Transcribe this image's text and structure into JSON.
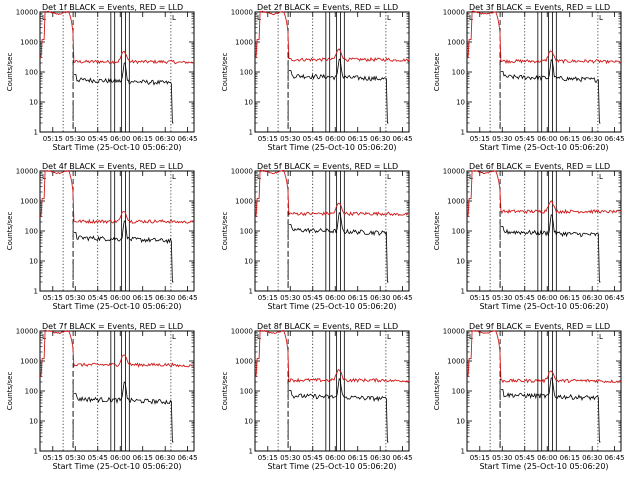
{
  "chart_data": {
    "type": "line",
    "layout": "3x3 grid of panels",
    "y_scale": "log",
    "ylim": [
      1,
      10000
    ],
    "y_tick_labels": [
      "1",
      "10",
      "100",
      "1000",
      "10000"
    ],
    "x_tick_labels": [
      "05:15",
      "05:30",
      "05:45",
      "06:00",
      "06:15",
      "06:30",
      "06:45"
    ],
    "xlabel": "Start Time (25-Oct-10 05:06:20)",
    "ylabel": "Counts/sec",
    "colors": {
      "events": "#000000",
      "lld": "#d01818"
    },
    "series_names": [
      "BLACK = Events",
      "RED = LLD"
    ],
    "legend_text": "BLACK = Events, RED = LLD",
    "legend_placement": "title",
    "corner_marker": "L",
    "panels": [
      {
        "title": "Det 1f BLACK = Events, RED = LLD",
        "events_level": 55,
        "lld_level": 220,
        "events_end": 40,
        "lld_end": 210
      },
      {
        "title": "Det 2f BLACK = Events, RED = LLD",
        "events_level": 75,
        "lld_level": 260,
        "events_end": 60,
        "lld_end": 250
      },
      {
        "title": "Det 3f BLACK = Events, RED = LLD",
        "events_level": 70,
        "lld_level": 230,
        "events_end": 55,
        "lld_end": 220
      },
      {
        "title": "Det 4f BLACK = Events, RED = LLD",
        "events_level": 60,
        "lld_level": 210,
        "events_end": 45,
        "lld_end": 200
      },
      {
        "title": "Det 5f BLACK = Events, RED = LLD",
        "events_level": 110,
        "lld_level": 380,
        "events_end": 95,
        "lld_end": 360
      },
      {
        "title": "Det 6f BLACK = Events, RED = LLD",
        "events_level": 95,
        "lld_level": 450,
        "events_end": 80,
        "lld_end": 440
      },
      {
        "title": "Det 7f BLACK = Events, RED = LLD",
        "events_level": 55,
        "lld_level": 750,
        "events_end": 45,
        "lld_end": 700
      },
      {
        "title": "Det 8f BLACK = Events, RED = LLD",
        "events_level": 70,
        "lld_level": 230,
        "events_end": 55,
        "lld_end": 220
      },
      {
        "title": "Det 9f BLACK = Events, RED = LLD",
        "events_level": 75,
        "lld_level": 220,
        "events_end": 60,
        "lld_end": 210
      }
    ]
  }
}
